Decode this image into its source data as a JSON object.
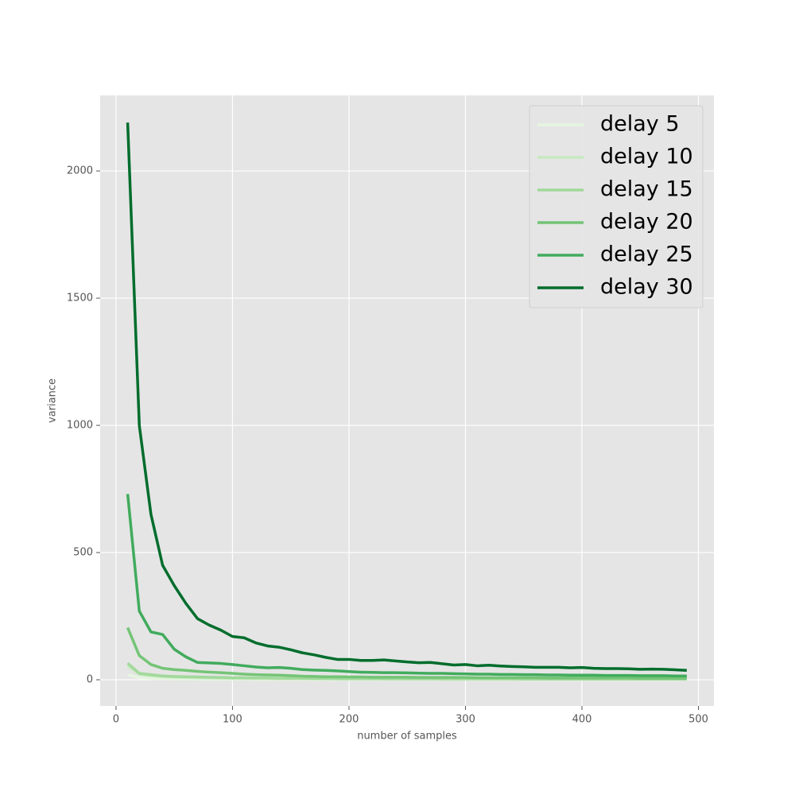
{
  "chart_data": {
    "type": "line",
    "x_label": "number of samples",
    "y_label": "variance",
    "x": [
      10,
      20,
      30,
      40,
      50,
      60,
      70,
      80,
      90,
      100,
      110,
      120,
      130,
      140,
      150,
      160,
      170,
      180,
      190,
      200,
      210,
      220,
      230,
      240,
      250,
      260,
      270,
      280,
      290,
      300,
      310,
      320,
      330,
      340,
      350,
      360,
      370,
      380,
      390,
      400,
      410,
      420,
      430,
      440,
      450,
      460,
      470,
      480,
      490
    ],
    "series": [
      {
        "name": "delay 5",
        "color": "#e5f5e0",
        "values": [
          20,
          8,
          5,
          4,
          3,
          3,
          2,
          2,
          2,
          2,
          2,
          1,
          1,
          1,
          1,
          1,
          1,
          1,
          1,
          1,
          1,
          1,
          1,
          1,
          1,
          1,
          1,
          1,
          1,
          1,
          1,
          1,
          1,
          1,
          1,
          1,
          1,
          1,
          1,
          1,
          1,
          1,
          1,
          1,
          1,
          1,
          1,
          1,
          1
        ]
      },
      {
        "name": "delay 10",
        "color": "#c7e9c0",
        "values": [
          55,
          22,
          15,
          12,
          10,
          9,
          8,
          7,
          6,
          6,
          5,
          5,
          5,
          4,
          4,
          4,
          4,
          4,
          3,
          3,
          3,
          3,
          3,
          3,
          3,
          3,
          3,
          2,
          2,
          2,
          2,
          2,
          2,
          2,
          2,
          2,
          2,
          2,
          2,
          2,
          2,
          2,
          2,
          2,
          2,
          2,
          2,
          2,
          2
        ]
      },
      {
        "name": "delay 15",
        "color": "#a1d99b",
        "values": [
          65,
          25,
          20,
          15,
          13,
          12,
          11,
          10,
          9,
          8,
          8,
          7,
          7,
          6,
          6,
          6,
          5,
          5,
          5,
          5,
          5,
          5,
          4,
          4,
          4,
          4,
          4,
          4,
          4,
          4,
          4,
          4,
          4,
          4,
          3,
          3,
          3,
          3,
          3,
          3,
          3,
          3,
          3,
          3,
          3,
          3,
          3,
          3,
          3
        ]
      },
      {
        "name": "delay 20",
        "color": "#74c476",
        "values": [
          205,
          95,
          60,
          45,
          40,
          37,
          33,
          30,
          28,
          25,
          22,
          20,
          19,
          18,
          16,
          14,
          13,
          12,
          12,
          11,
          11,
          10,
          10,
          10,
          10,
          9,
          9,
          9,
          9,
          9,
          8,
          8,
          8,
          8,
          8,
          8,
          7,
          7,
          7,
          7,
          7,
          7,
          7,
          7,
          6,
          6,
          6,
          6,
          6
        ]
      },
      {
        "name": "delay 25",
        "color": "#41ab5d",
        "values": [
          730,
          270,
          188,
          178,
          120,
          90,
          68,
          66,
          64,
          60,
          55,
          50,
          47,
          48,
          45,
          40,
          38,
          37,
          35,
          32,
          30,
          29,
          28,
          28,
          27,
          26,
          25,
          25,
          24,
          23,
          22,
          22,
          21,
          21,
          20,
          20,
          19,
          19,
          18,
          18,
          18,
          17,
          17,
          17,
          16,
          16,
          16,
          15,
          15
        ]
      },
      {
        "name": "delay 30",
        "color": "#006d2c",
        "values": [
          2190,
          1000,
          650,
          450,
          370,
          300,
          240,
          215,
          195,
          170,
          165,
          145,
          133,
          128,
          118,
          106,
          98,
          88,
          80,
          80,
          76,
          76,
          78,
          74,
          70,
          67,
          68,
          63,
          58,
          60,
          55,
          57,
          54,
          52,
          51,
          49,
          49,
          49,
          47,
          48,
          45,
          44,
          44,
          43,
          41,
          42,
          41,
          39,
          37
        ]
      }
    ],
    "xlim": [
      -13.6,
      513.3
    ],
    "ylim": [
      -103,
      2297
    ],
    "xticks": [
      0,
      100,
      200,
      300,
      400,
      500
    ],
    "yticks": [
      0,
      500,
      1000,
      1500,
      2000
    ],
    "grid": true,
    "legend": "upper right"
  }
}
